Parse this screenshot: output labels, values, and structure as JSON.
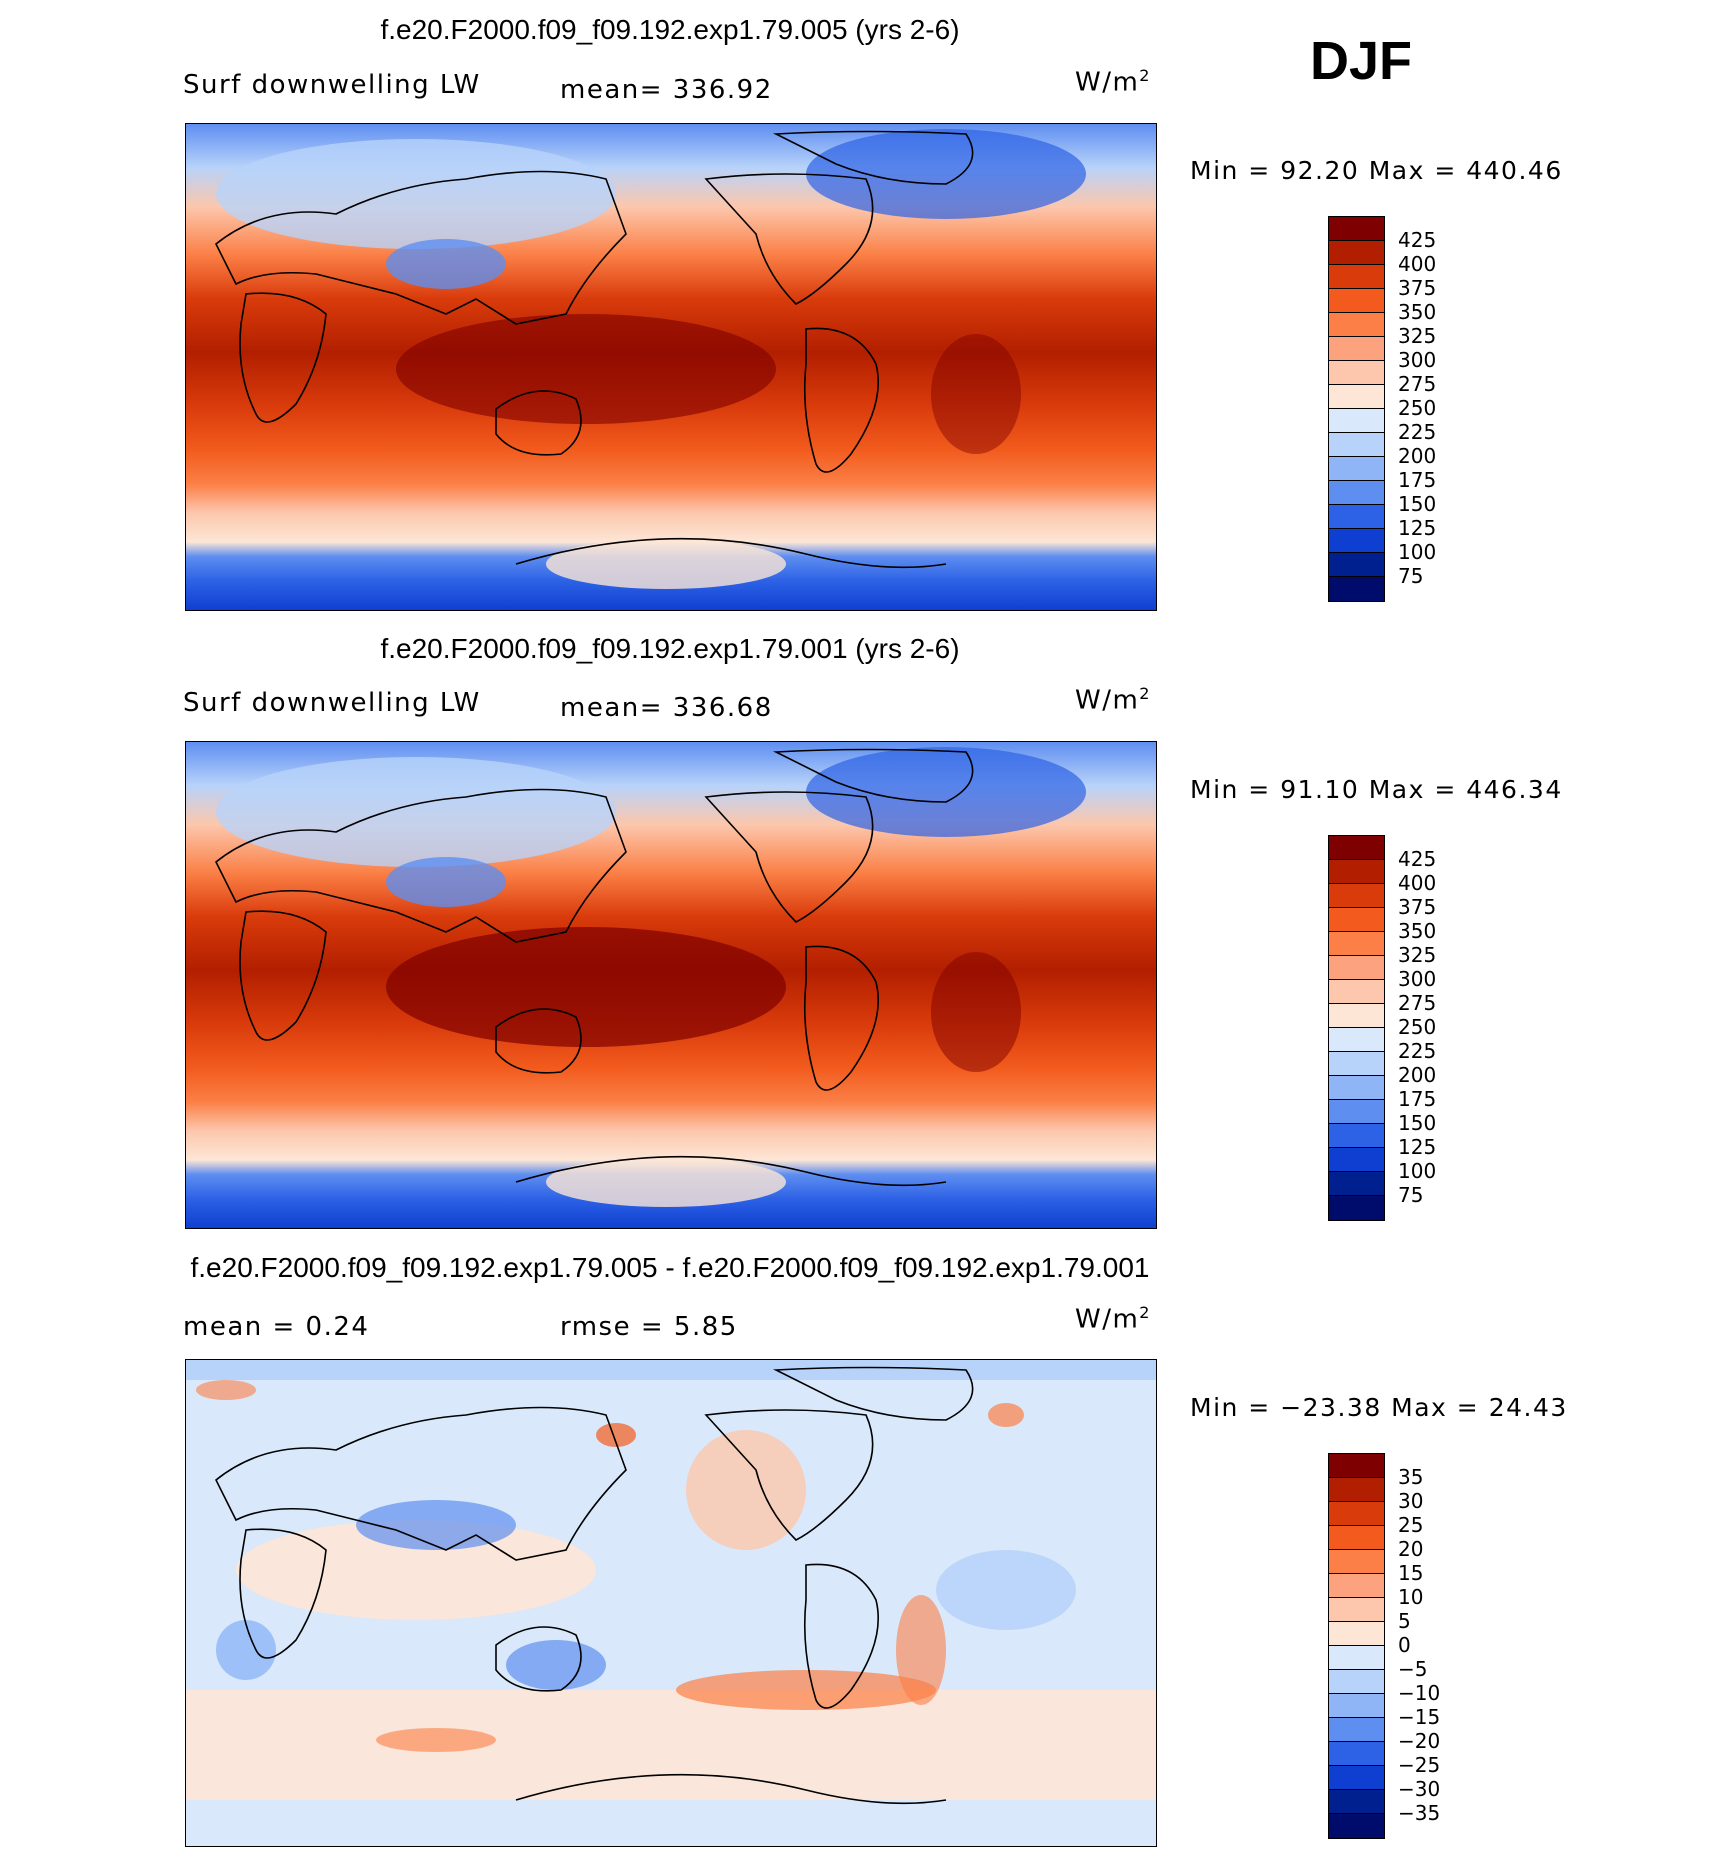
{
  "season": "DJF",
  "panels": [
    {
      "title": "f.e20.F2000.f09_f09.192.exp1.79.005 (yrs 2-6)",
      "variable": "Surf downwelling LW",
      "stat_text": "mean=  336.92",
      "units": "W/m",
      "units_sup": "2",
      "minmax": "Min =   92.20 Max = 440.46",
      "colorbar_labels": [
        "425",
        "400",
        "375",
        "350",
        "325",
        "300",
        "275",
        "250",
        "225",
        "200",
        "175",
        "150",
        "125",
        "100",
        "75"
      ],
      "colors": [
        "#7f0000",
        "#b21f00",
        "#d93b0b",
        "#f25b1d",
        "#fb7f46",
        "#fca27f",
        "#fcc7ac",
        "#fde6d6",
        "#d9e9fb",
        "#b8d3fa",
        "#8fb5f7",
        "#5e8ef0",
        "#2d62e6",
        "#0f3fd0",
        "#002090",
        "#000c6c"
      ]
    },
    {
      "title": "f.e20.F2000.f09_f09.192.exp1.79.001 (yrs 2-6)",
      "variable": "Surf downwelling LW",
      "stat_text": "mean=  336.68",
      "units": "W/m",
      "units_sup": "2",
      "minmax": "Min =   91.10 Max = 446.34",
      "colorbar_labels": [
        "425",
        "400",
        "375",
        "350",
        "325",
        "300",
        "275",
        "250",
        "225",
        "200",
        "175",
        "150",
        "125",
        "100",
        "75"
      ],
      "colors": [
        "#7f0000",
        "#b21f00",
        "#d93b0b",
        "#f25b1d",
        "#fb7f46",
        "#fca27f",
        "#fcc7ac",
        "#fde6d6",
        "#d9e9fb",
        "#b8d3fa",
        "#8fb5f7",
        "#5e8ef0",
        "#2d62e6",
        "#0f3fd0",
        "#002090",
        "#000c6c"
      ]
    },
    {
      "title": "f.e20.F2000.f09_f09.192.exp1.79.005 - f.e20.F2000.f09_f09.192.exp1.79.001",
      "variable": "mean =    0.24",
      "stat_text": "rmse =    5.85",
      "units": "W/m",
      "units_sup": "2",
      "minmax": "Min = −23.38 Max =   24.43",
      "colorbar_labels": [
        "35",
        "30",
        "25",
        "20",
        "15",
        "10",
        "5",
        "0",
        "−5",
        "−10",
        "−15",
        "−20",
        "−25",
        "−30",
        "−35"
      ],
      "colors": [
        "#7f0000",
        "#b21f00",
        "#d93b0b",
        "#f25b1d",
        "#fb7f46",
        "#fca27f",
        "#fcc7ac",
        "#fde6d6",
        "#d9e9fb",
        "#b8d3fa",
        "#8fb5f7",
        "#5e8ef0",
        "#2d62e6",
        "#0f3fd0",
        "#002090",
        "#000c6c"
      ]
    }
  ]
}
